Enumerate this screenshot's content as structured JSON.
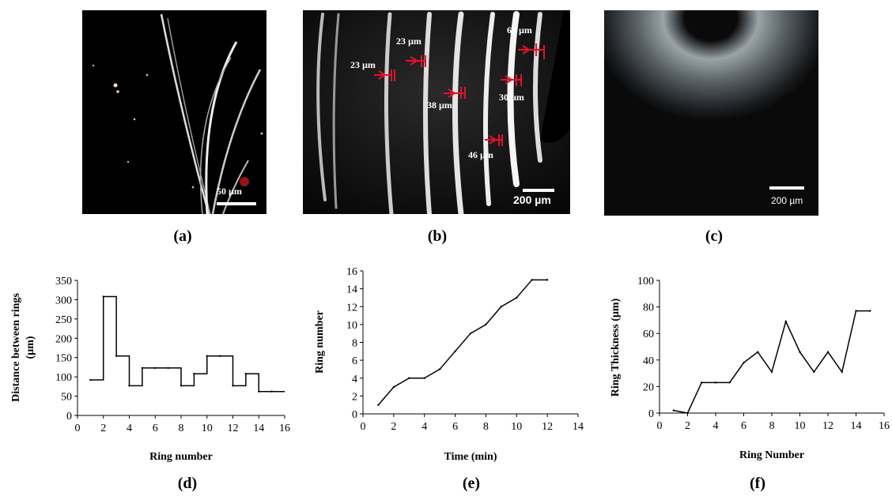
{
  "panels": {
    "a": {
      "label": "(a)",
      "scale_bar": "50 µm"
    },
    "b": {
      "label": "(b)",
      "scale_bar": "200 µm",
      "annotations": [
        "23 µm",
        "23 µm",
        "38 µm",
        "46 µm",
        "69 µm",
        "30 µm"
      ]
    },
    "c": {
      "label": "(c)",
      "scale_bar": "200 µm"
    },
    "d": {
      "label": "(d)"
    },
    "e": {
      "label": "(e)"
    },
    "f": {
      "label": "(f)"
    }
  },
  "colors": {
    "annotation": "#e8102a",
    "line": "#000000",
    "background": "#ffffff"
  },
  "chart_data": [
    {
      "id": "d",
      "type": "line",
      "step": true,
      "xlabel": "Ring number",
      "ylabel": "Distance between rings (µm)",
      "xlim": [
        0,
        16
      ],
      "ylim": [
        0,
        350
      ],
      "xticks": [
        0,
        2,
        4,
        6,
        8,
        10,
        12,
        14,
        16
      ],
      "yticks": [
        0,
        50,
        100,
        150,
        200,
        250,
        300,
        350
      ],
      "x": [
        1,
        2,
        3,
        4,
        5,
        6,
        7,
        8,
        9,
        10,
        11,
        12,
        13,
        14,
        15
      ],
      "y": [
        92,
        308,
        154,
        77,
        123,
        123,
        123,
        77,
        108,
        154,
        154,
        77,
        108,
        62,
        62
      ]
    },
    {
      "id": "e",
      "type": "line",
      "xlabel": "Time (min)",
      "ylabel": "Ring number",
      "xlim": [
        0,
        14
      ],
      "ylim": [
        0,
        16
      ],
      "xticks": [
        0,
        2,
        4,
        6,
        8,
        10,
        12,
        14
      ],
      "yticks": [
        0,
        2,
        4,
        6,
        8,
        10,
        12,
        14,
        16
      ],
      "x": [
        1,
        2,
        3,
        4,
        5,
        6,
        7,
        8,
        9,
        10,
        11,
        12
      ],
      "y": [
        1,
        3,
        4,
        4,
        5,
        7,
        9,
        10,
        12,
        13,
        15,
        15
      ]
    },
    {
      "id": "f",
      "type": "line",
      "xlabel": "Ring Number",
      "ylabel": "Ring Thickness (µm)",
      "xlim": [
        0,
        16
      ],
      "ylim": [
        0,
        100
      ],
      "xticks": [
        0,
        2,
        4,
        6,
        8,
        10,
        12,
        14,
        16
      ],
      "yticks": [
        0,
        20,
        40,
        60,
        80,
        100
      ],
      "x": [
        1,
        2,
        3,
        4,
        5,
        6,
        7,
        8,
        9,
        10,
        11,
        12,
        13,
        14,
        15
      ],
      "y": [
        2,
        0,
        23,
        23,
        23,
        38,
        46,
        31,
        69,
        46,
        31,
        46,
        31,
        77,
        77
      ]
    }
  ]
}
